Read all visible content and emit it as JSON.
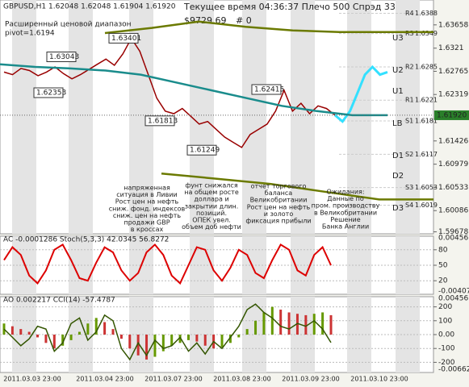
{
  "header": {
    "symbol": "GBPUSD,H1  1.62048 1.62048 1.61904 1.61920",
    "status": "Текущее время 04:36:37 Плечо 500 Спрэд 33",
    "balance": "$9729.69",
    "orders": "# 0",
    "range_title": "Расширенный ценовой диапазон",
    "pivot": "pivot=1.6194"
  },
  "chart_data": [
    {
      "type": "line",
      "ylim": [
        1.5964,
        1.6395
      ],
      "yticks": [
        1.63658,
        1.6321,
        1.62765,
        1.62319,
        1.61426,
        1.60979,
        1.60533,
        1.60086,
        1.59678
      ],
      "current": {
        "value": 1.6192,
        "label": "1.61920"
      },
      "series": [
        {
          "name": "close",
          "color": "#990000",
          "values": [
            1.6275,
            1.627,
            1.6282,
            1.6278,
            1.6268,
            1.6275,
            1.6285,
            1.6272,
            1.6262,
            1.627,
            1.628,
            1.629,
            1.63,
            1.6288,
            1.631,
            1.634,
            1.6315,
            1.627,
            1.6225,
            1.62,
            1.6195,
            1.6205,
            1.619,
            1.6175,
            1.618,
            1.6165,
            1.615,
            1.614,
            1.613,
            1.6155,
            1.6165,
            1.6175,
            1.62,
            1.624,
            1.62,
            1.6215,
            1.6195,
            1.621,
            1.6205,
            1.6192
          ]
        },
        {
          "name": "forecast",
          "color": "#33e0ff",
          "values": [
            1.6192,
            1.618,
            1.62,
            1.6235,
            1.627,
            1.6285,
            1.627,
            1.6275
          ]
        },
        {
          "name": "ma",
          "color": "#1a8c8c",
          "values": [
            1.629,
            1.6285,
            1.6282,
            1.6278,
            1.627,
            1.6255,
            1.624,
            1.6225,
            1.621,
            1.62,
            1.6192,
            1.6192
          ]
        },
        {
          "name": "upper",
          "color": "#6b7a00",
          "values": [
            1.635,
            1.636,
            1.6372,
            1.6362,
            1.6355,
            1.6352,
            1.6352,
            1.6352
          ]
        },
        {
          "name": "lower",
          "color": "#6b7a00",
          "values": [
            1.608,
            1.607,
            1.606,
            1.6045,
            1.603,
            1.603
          ]
        }
      ],
      "pivots": [
        {
          "name": "R4",
          "value": 1.6388
        },
        {
          "name": "R3",
          "value": 1.6349
        },
        {
          "name": "R2",
          "value": 1.6285
        },
        {
          "name": "R1",
          "value": 1.6221
        },
        {
          "name": "S1",
          "value": 1.6181
        },
        {
          "name": "S2",
          "value": 1.6117
        },
        {
          "name": "S3",
          "value": 1.6053
        },
        {
          "name": "S4",
          "value": 1.6019
        }
      ],
      "channels": [
        "U3",
        "U2",
        "U1",
        "LB",
        "D1",
        "D2",
        "D3"
      ],
      "price_labels": [
        1.63401,
        1.63043,
        1.62353,
        1.61813,
        1.61249,
        1.62415
      ],
      "annotations": [
        {
          "color": "#cc0000",
          "lines": [
            "напряженная",
            "ситуация в Ливии",
            "Рост цен на нефть",
            "сниж. фонд. индексов",
            "сниж. цен на нефть",
            "продажи GBP",
            "в кроссах"
          ]
        },
        {
          "color": "#cc0000",
          "lines": [
            "фунт снижался",
            "на общем росте",
            "доллара и",
            "закрытии длин.",
            "позиций.",
            "ОПЕК увел.",
            "объем доб нефти"
          ]
        },
        {
          "color": "#333333",
          "lines": [
            "отчет торгового",
            "баланса",
            "Великобритании",
            "Рост цен на нефть",
            "и золото",
            "фиксация прибыли"
          ]
        },
        {
          "color": "#333333",
          "lines": [
            "Ожидания:",
            "Данные по",
            "пром. производству",
            "в Великобритании",
            "Решение",
            "Банка Англии"
          ]
        }
      ]
    },
    {
      "type": "line",
      "title": "AC -0.0001286  Stoch(5,3,3) 42.0345 56.8272",
      "ylim": [
        0,
        100
      ],
      "yticks": [
        20,
        50,
        80
      ],
      "scale_labels": [
        "0.00456",
        "-0.00407"
      ],
      "series": [
        {
          "name": "stoch",
          "color": "#dd0000",
          "values": [
            60,
            85,
            70,
            30,
            15,
            40,
            80,
            90,
            60,
            25,
            20,
            55,
            85,
            75,
            40,
            20,
            35,
            75,
            90,
            70,
            30,
            15,
            50,
            85,
            80,
            40,
            20,
            45,
            80,
            70,
            35,
            25,
            60,
            90,
            80,
            40,
            30,
            70,
            85,
            50
          ]
        }
      ]
    },
    {
      "type": "bar",
      "title": "AO 0.002217  CCI(14) -57.4787",
      "ylim": [
        -250,
        250
      ],
      "yticks": [
        -200,
        -100,
        {
          "value": 0,
          "label": "0.00"
        },
        100,
        200
      ],
      "scale_labels": [
        "0.00456",
        "-0.00662"
      ],
      "series": [
        {
          "name": "ao",
          "color": "#cc3333",
          "values": [
            80,
            60,
            40,
            20,
            -20,
            -60,
            -100,
            -80,
            -40,
            20,
            80,
            120,
            90,
            40,
            -30,
            -100,
            -150,
            -180,
            -160,
            -120,
            -80,
            -60,
            -40,
            -50,
            -80,
            -100,
            -90,
            -60,
            -20,
            40,
            100,
            160,
            200,
            180,
            160,
            150,
            140,
            150,
            160,
            140
          ]
        },
        {
          "name": "cci",
          "color": "#335500",
          "values": [
            40,
            -20,
            -80,
            -30,
            60,
            40,
            -120,
            -60,
            80,
            120,
            -40,
            20,
            140,
            100,
            -100,
            -180,
            -60,
            -150,
            -40,
            -100,
            -80,
            -20,
            -120,
            -60,
            -140,
            -50,
            -100,
            -20,
            60,
            180,
            220,
            160,
            120,
            60,
            40,
            80,
            60,
            100,
            40,
            -57.4787
          ]
        }
      ]
    }
  ],
  "date_labels": [
    "2011.03.03 23:00",
    "2011.03.04 23:00",
    "2011.03.07 23:00",
    "2011.03.08 23:00",
    "2011.03.09 23:00",
    "2011.03.10 23:00"
  ]
}
